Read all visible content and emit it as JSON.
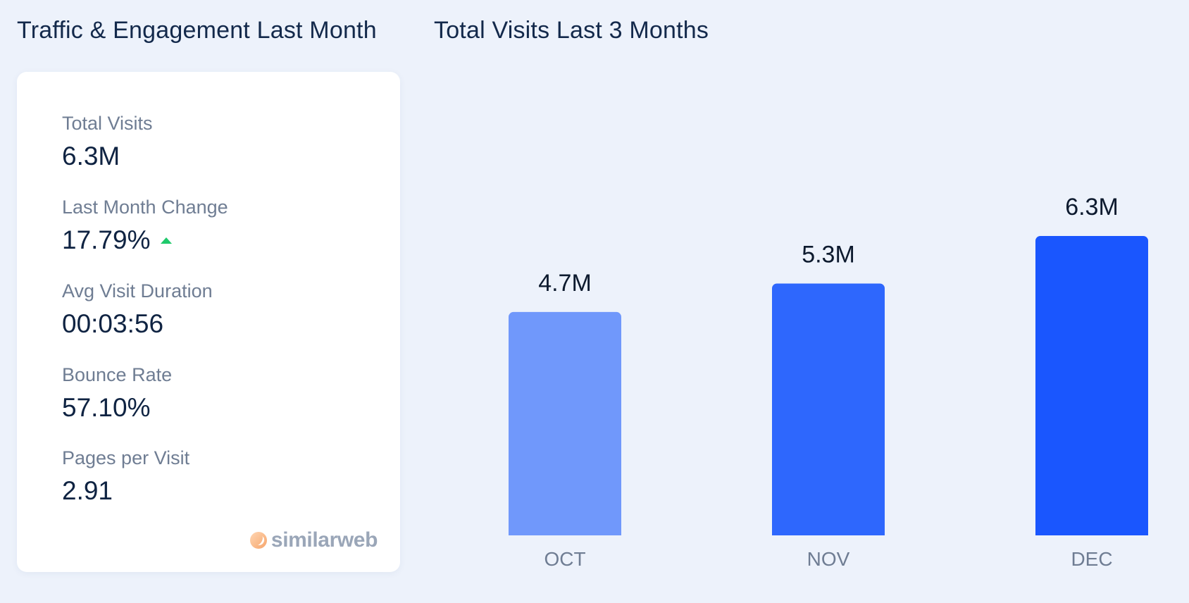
{
  "headers": {
    "left_title": "Traffic & Engagement Last Month",
    "right_title": "Total Visits Last 3 Months"
  },
  "metrics": {
    "total_visits": {
      "label": "Total Visits",
      "value": "6.3M"
    },
    "last_month_change": {
      "label": "Last Month Change",
      "value": "17.79%",
      "trend": "up",
      "trend_color": "#1fc96b"
    },
    "avg_visit_duration": {
      "label": "Avg Visit Duration",
      "value": "00:03:56"
    },
    "bounce_rate": {
      "label": "Bounce Rate",
      "value": "57.10%"
    },
    "pages_per_visit": {
      "label": "Pages per Visit",
      "value": "2.91"
    }
  },
  "branding": {
    "logo_text": "similarweb",
    "logo_icon": "similarweb-logo-icon"
  },
  "chart_data": {
    "type": "bar",
    "title": "Total Visits Last 3 Months",
    "categories": [
      "OCT",
      "NOV",
      "DEC"
    ],
    "values": [
      4.7,
      5.3,
      6.3
    ],
    "value_labels": [
      "4.7M",
      "5.3M",
      "6.3M"
    ],
    "unit": "M",
    "bar_colors": [
      "#7098fb",
      "#2e67fd",
      "#1a56fe"
    ],
    "xlabel": "",
    "ylabel": "",
    "ylim": [
      0,
      6.3
    ],
    "grid": false,
    "legend": "none"
  }
}
